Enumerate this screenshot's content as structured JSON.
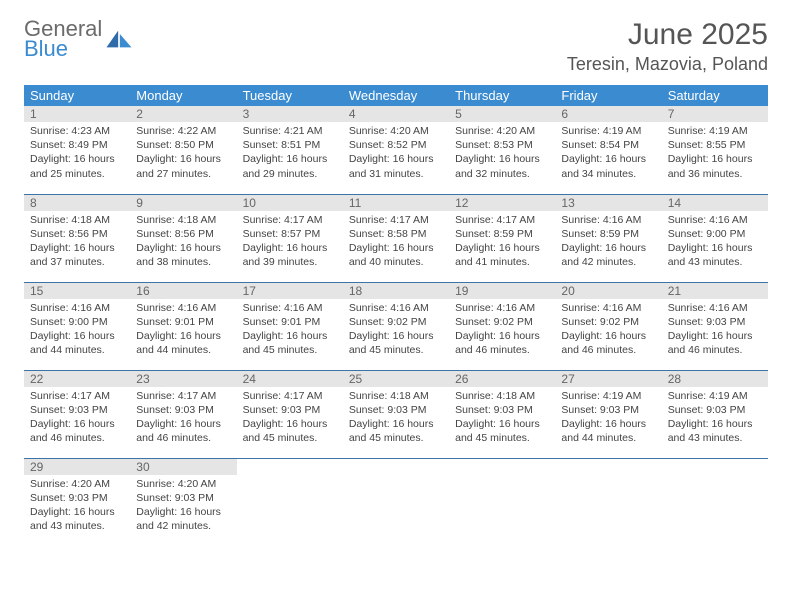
{
  "logo": {
    "text_top": "General",
    "text_bottom": "Blue"
  },
  "header": {
    "month": "June 2025",
    "location": "Teresin, Mazovia, Poland"
  },
  "colors": {
    "header_bg": "#3a8bd0",
    "header_text": "#ffffff",
    "row_border": "#3a74a8",
    "daynum_bg": "#e5e5e5",
    "text": "#444444",
    "logo_gray": "#6b6b6b",
    "logo_blue": "#3a8bd0"
  },
  "weekdays": [
    "Sunday",
    "Monday",
    "Tuesday",
    "Wednesday",
    "Thursday",
    "Friday",
    "Saturday"
  ],
  "days": [
    {
      "n": 1,
      "sr": "4:23 AM",
      "ss": "8:49 PM",
      "dl": "16 hours and 25 minutes."
    },
    {
      "n": 2,
      "sr": "4:22 AM",
      "ss": "8:50 PM",
      "dl": "16 hours and 27 minutes."
    },
    {
      "n": 3,
      "sr": "4:21 AM",
      "ss": "8:51 PM",
      "dl": "16 hours and 29 minutes."
    },
    {
      "n": 4,
      "sr": "4:20 AM",
      "ss": "8:52 PM",
      "dl": "16 hours and 31 minutes."
    },
    {
      "n": 5,
      "sr": "4:20 AM",
      "ss": "8:53 PM",
      "dl": "16 hours and 32 minutes."
    },
    {
      "n": 6,
      "sr": "4:19 AM",
      "ss": "8:54 PM",
      "dl": "16 hours and 34 minutes."
    },
    {
      "n": 7,
      "sr": "4:19 AM",
      "ss": "8:55 PM",
      "dl": "16 hours and 36 minutes."
    },
    {
      "n": 8,
      "sr": "4:18 AM",
      "ss": "8:56 PM",
      "dl": "16 hours and 37 minutes."
    },
    {
      "n": 9,
      "sr": "4:18 AM",
      "ss": "8:56 PM",
      "dl": "16 hours and 38 minutes."
    },
    {
      "n": 10,
      "sr": "4:17 AM",
      "ss": "8:57 PM",
      "dl": "16 hours and 39 minutes."
    },
    {
      "n": 11,
      "sr": "4:17 AM",
      "ss": "8:58 PM",
      "dl": "16 hours and 40 minutes."
    },
    {
      "n": 12,
      "sr": "4:17 AM",
      "ss": "8:59 PM",
      "dl": "16 hours and 41 minutes."
    },
    {
      "n": 13,
      "sr": "4:16 AM",
      "ss": "8:59 PM",
      "dl": "16 hours and 42 minutes."
    },
    {
      "n": 14,
      "sr": "4:16 AM",
      "ss": "9:00 PM",
      "dl": "16 hours and 43 minutes."
    },
    {
      "n": 15,
      "sr": "4:16 AM",
      "ss": "9:00 PM",
      "dl": "16 hours and 44 minutes."
    },
    {
      "n": 16,
      "sr": "4:16 AM",
      "ss": "9:01 PM",
      "dl": "16 hours and 44 minutes."
    },
    {
      "n": 17,
      "sr": "4:16 AM",
      "ss": "9:01 PM",
      "dl": "16 hours and 45 minutes."
    },
    {
      "n": 18,
      "sr": "4:16 AM",
      "ss": "9:02 PM",
      "dl": "16 hours and 45 minutes."
    },
    {
      "n": 19,
      "sr": "4:16 AM",
      "ss": "9:02 PM",
      "dl": "16 hours and 46 minutes."
    },
    {
      "n": 20,
      "sr": "4:16 AM",
      "ss": "9:02 PM",
      "dl": "16 hours and 46 minutes."
    },
    {
      "n": 21,
      "sr": "4:16 AM",
      "ss": "9:03 PM",
      "dl": "16 hours and 46 minutes."
    },
    {
      "n": 22,
      "sr": "4:17 AM",
      "ss": "9:03 PM",
      "dl": "16 hours and 46 minutes."
    },
    {
      "n": 23,
      "sr": "4:17 AM",
      "ss": "9:03 PM",
      "dl": "16 hours and 46 minutes."
    },
    {
      "n": 24,
      "sr": "4:17 AM",
      "ss": "9:03 PM",
      "dl": "16 hours and 45 minutes."
    },
    {
      "n": 25,
      "sr": "4:18 AM",
      "ss": "9:03 PM",
      "dl": "16 hours and 45 minutes."
    },
    {
      "n": 26,
      "sr": "4:18 AM",
      "ss": "9:03 PM",
      "dl": "16 hours and 45 minutes."
    },
    {
      "n": 27,
      "sr": "4:19 AM",
      "ss": "9:03 PM",
      "dl": "16 hours and 44 minutes."
    },
    {
      "n": 28,
      "sr": "4:19 AM",
      "ss": "9:03 PM",
      "dl": "16 hours and 43 minutes."
    },
    {
      "n": 29,
      "sr": "4:20 AM",
      "ss": "9:03 PM",
      "dl": "16 hours and 43 minutes."
    },
    {
      "n": 30,
      "sr": "4:20 AM",
      "ss": "9:03 PM",
      "dl": "16 hours and 42 minutes."
    }
  ],
  "labels": {
    "sunrise": "Sunrise:",
    "sunset": "Sunset:",
    "daylight": "Daylight:"
  },
  "layout": {
    "start_weekday": 0,
    "cols": 7,
    "rows": 5
  }
}
